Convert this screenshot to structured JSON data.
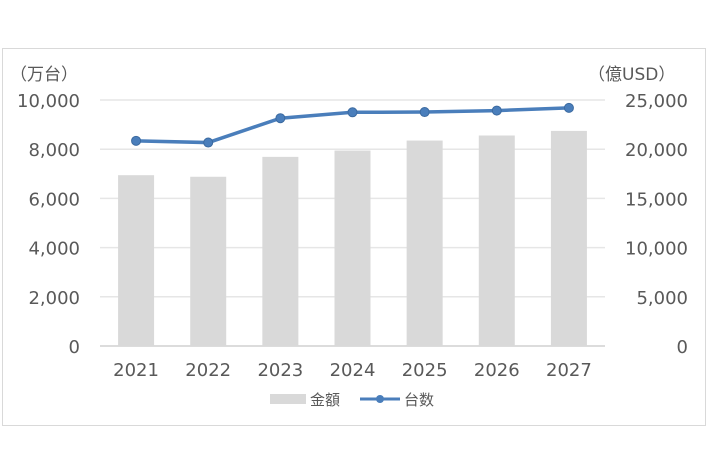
{
  "chart_data": {
    "type": "bar+line",
    "categories": [
      "2021",
      "2022",
      "2023",
      "2024",
      "2025",
      "2026",
      "2027"
    ],
    "series": [
      {
        "name": "金額",
        "type": "bar",
        "axis": "right",
        "color": "#d9d9d9",
        "values": [
          17360,
          17200,
          19220,
          19860,
          20880,
          21390,
          21860
        ]
      },
      {
        "name": "台数",
        "type": "line",
        "axis": "left",
        "color": "#4a7ebb",
        "values": [
          8340,
          8270,
          9260,
          9500,
          9510,
          9570,
          9680
        ]
      }
    ],
    "left_axis": {
      "label": "（万台）",
      "ylim": [
        0,
        10000
      ],
      "ticks": [
        "0",
        "2,000",
        "4,000",
        "6,000",
        "8,000",
        "10,000"
      ]
    },
    "right_axis": {
      "label": "（億USD）",
      "ylim": [
        0,
        25000
      ],
      "ticks": [
        "0",
        "5,000",
        "10,000",
        "15,000",
        "20,000",
        "25,000"
      ]
    },
    "grid": true,
    "legend_position": "bottom"
  }
}
